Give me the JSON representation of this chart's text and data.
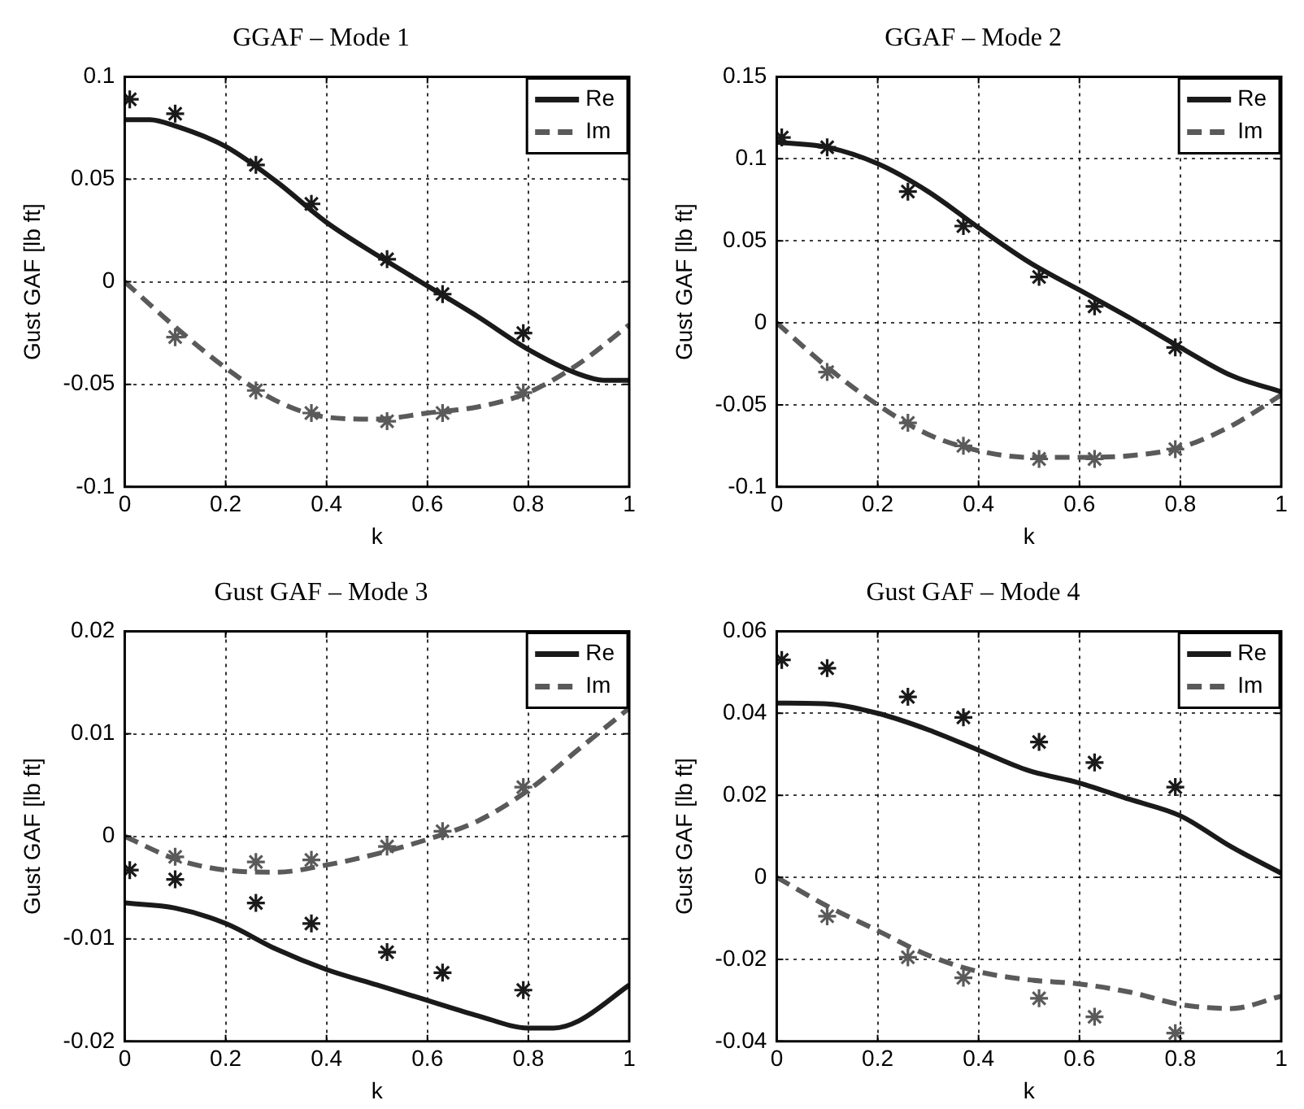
{
  "chart_data": [
    {
      "type": "line",
      "title": "GGAF – Mode 1",
      "xlabel": "k",
      "ylabel": "Gust GAF [lb ft]",
      "xlim": [
        0,
        1
      ],
      "xticks": [
        0,
        0.2,
        0.4,
        0.6,
        0.8,
        1
      ],
      "ylim": [
        -0.1,
        0.1
      ],
      "yticks": [
        -0.1,
        -0.05,
        0,
        0.05,
        0.1
      ],
      "grid": true,
      "legend": "top right",
      "series": [
        {
          "name": "Re",
          "color": "#1a1a1a",
          "line_style": "solid",
          "marker": "none",
          "x": [
            0,
            0.05,
            0.1,
            0.2,
            0.3,
            0.4,
            0.5,
            0.6,
            0.7,
            0.8,
            0.9,
            0.95,
            1
          ],
          "values": [
            0.079,
            0.079,
            0.076,
            0.066,
            0.049,
            0.029,
            0.013,
            -0.002,
            -0.017,
            -0.033,
            -0.045,
            -0.048,
            -0.048
          ]
        },
        {
          "name": "Im",
          "color": "#5a5a5a",
          "line_style": "dashed",
          "marker": "none",
          "x": [
            0,
            0.1,
            0.2,
            0.3,
            0.4,
            0.5,
            0.6,
            0.7,
            0.8,
            0.9,
            1
          ],
          "values": [
            0,
            -0.022,
            -0.042,
            -0.058,
            -0.066,
            -0.067,
            -0.064,
            -0.061,
            -0.054,
            -0.04,
            -0.021
          ]
        },
        {
          "type": "scatter",
          "color": "#1a1a1a",
          "marker": "cross",
          "x": [
            0.01,
            0.1,
            0.26,
            0.37,
            0.52,
            0.63,
            0.79
          ],
          "values": [
            0.089,
            0.082,
            0.057,
            0.038,
            0.011,
            -0.006,
            -0.025
          ]
        },
        {
          "type": "scatter",
          "color": "#5a5a5a",
          "marker": "cross",
          "x": [
            0.1,
            0.26,
            0.37,
            0.52,
            0.63,
            0.79
          ],
          "values": [
            -0.027,
            -0.053,
            -0.064,
            -0.068,
            -0.064,
            -0.054
          ]
        }
      ]
    },
    {
      "type": "line",
      "title": "GGAF – Mode 2",
      "xlabel": "k",
      "ylabel": "Gust GAF [lb ft]",
      "xlim": [
        0,
        1
      ],
      "xticks": [
        0,
        0.2,
        0.4,
        0.6,
        0.8,
        1
      ],
      "ylim": [
        -0.1,
        0.15
      ],
      "yticks": [
        -0.1,
        -0.05,
        0,
        0.05,
        0.1,
        0.15
      ],
      "grid": true,
      "legend": "top right",
      "series": [
        {
          "name": "Re",
          "color": "#1a1a1a",
          "line_style": "solid",
          "marker": "none",
          "x": [
            0,
            0.1,
            0.2,
            0.3,
            0.4,
            0.5,
            0.6,
            0.7,
            0.8,
            0.9,
            1
          ],
          "values": [
            0.11,
            0.107,
            0.097,
            0.08,
            0.058,
            0.037,
            0.02,
            0.003,
            -0.015,
            -0.032,
            -0.042
          ]
        },
        {
          "name": "Im",
          "color": "#5a5a5a",
          "line_style": "dashed",
          "marker": "none",
          "x": [
            0,
            0.1,
            0.2,
            0.3,
            0.4,
            0.5,
            0.6,
            0.7,
            0.8,
            0.9,
            1
          ],
          "values": [
            0,
            -0.027,
            -0.05,
            -0.068,
            -0.078,
            -0.082,
            -0.082,
            -0.081,
            -0.076,
            -0.063,
            -0.044
          ]
        },
        {
          "type": "scatter",
          "color": "#1a1a1a",
          "marker": "cross",
          "x": [
            0.01,
            0.1,
            0.26,
            0.37,
            0.52,
            0.63,
            0.79
          ],
          "values": [
            0.113,
            0.107,
            0.08,
            0.059,
            0.028,
            0.01,
            -0.015
          ]
        },
        {
          "type": "scatter",
          "color": "#5a5a5a",
          "marker": "cross",
          "x": [
            0.1,
            0.26,
            0.37,
            0.52,
            0.63,
            0.79
          ],
          "values": [
            -0.03,
            -0.061,
            -0.075,
            -0.083,
            -0.083,
            -0.077
          ]
        }
      ]
    },
    {
      "type": "line",
      "title": "Gust GAF – Mode 3",
      "xlabel": "k",
      "ylabel": "Gust GAF [lb ft]",
      "xlim": [
        0,
        1
      ],
      "xticks": [
        0,
        0.2,
        0.4,
        0.6,
        0.8,
        1
      ],
      "ylim": [
        -0.02,
        0.02
      ],
      "yticks": [
        -0.02,
        -0.01,
        0,
        0.01,
        0.02
      ],
      "grid": true,
      "legend": "top right",
      "series": [
        {
          "name": "Re",
          "color": "#1a1a1a",
          "line_style": "solid",
          "marker": "none",
          "x": [
            0,
            0.1,
            0.2,
            0.3,
            0.4,
            0.5,
            0.6,
            0.7,
            0.8,
            0.85,
            0.9,
            1
          ],
          "values": [
            -0.0065,
            -0.007,
            -0.0085,
            -0.011,
            -0.013,
            -0.0145,
            -0.016,
            -0.0175,
            -0.0187,
            -0.0187,
            -0.018,
            -0.0145
          ]
        },
        {
          "name": "Im",
          "color": "#5a5a5a",
          "line_style": "dashed",
          "marker": "none",
          "x": [
            0,
            0.1,
            0.2,
            0.3,
            0.4,
            0.5,
            0.6,
            0.7,
            0.8,
            0.9,
            1
          ],
          "values": [
            0,
            -0.0022,
            -0.0033,
            -0.0035,
            -0.0028,
            -0.0017,
            -0.0003,
            0.0015,
            0.0045,
            0.0085,
            0.0125
          ]
        },
        {
          "type": "scatter",
          "color": "#1a1a1a",
          "marker": "cross",
          "x": [
            0.01,
            0.1,
            0.26,
            0.37,
            0.52,
            0.63,
            0.79
          ],
          "values": [
            -0.0033,
            -0.0042,
            -0.0065,
            -0.0085,
            -0.0113,
            -0.0133,
            -0.015
          ]
        },
        {
          "type": "scatter",
          "color": "#5a5a5a",
          "marker": "cross",
          "x": [
            0.1,
            0.26,
            0.37,
            0.52,
            0.63,
            0.79
          ],
          "values": [
            -0.002,
            -0.0025,
            -0.0023,
            -0.001,
            0.0005,
            0.0048
          ]
        }
      ]
    },
    {
      "type": "line",
      "title": "Gust GAF – Mode 4",
      "xlabel": "k",
      "ylabel": "Gust GAF [lb ft]",
      "xlim": [
        0,
        1
      ],
      "xticks": [
        0,
        0.2,
        0.4,
        0.6,
        0.8,
        1
      ],
      "ylim": [
        -0.04,
        0.06
      ],
      "yticks": [
        -0.04,
        -0.02,
        0,
        0.02,
        0.04,
        0.06
      ],
      "grid": true,
      "legend": "top right",
      "series": [
        {
          "name": "Re",
          "color": "#1a1a1a",
          "line_style": "solid",
          "marker": "none",
          "x": [
            0,
            0.1,
            0.2,
            0.3,
            0.4,
            0.5,
            0.6,
            0.7,
            0.8,
            0.9,
            1
          ],
          "values": [
            0.0425,
            0.0423,
            0.04,
            0.036,
            0.031,
            0.026,
            0.023,
            0.019,
            0.015,
            0.0075,
            0.001
          ]
        },
        {
          "name": "Im",
          "color": "#5a5a5a",
          "line_style": "dashed",
          "marker": "none",
          "x": [
            0,
            0.1,
            0.2,
            0.3,
            0.4,
            0.5,
            0.6,
            0.7,
            0.8,
            0.9,
            1
          ],
          "values": [
            0,
            -0.007,
            -0.013,
            -0.019,
            -0.023,
            -0.025,
            -0.026,
            -0.028,
            -0.031,
            -0.032,
            -0.029
          ]
        },
        {
          "type": "scatter",
          "color": "#1a1a1a",
          "marker": "cross",
          "x": [
            0.01,
            0.1,
            0.26,
            0.37,
            0.52,
            0.63,
            0.79
          ],
          "values": [
            0.053,
            0.051,
            0.044,
            0.039,
            0.033,
            0.028,
            0.022
          ]
        },
        {
          "type": "scatter",
          "color": "#5a5a5a",
          "marker": "cross",
          "x": [
            0.1,
            0.26,
            0.37,
            0.52,
            0.63,
            0.79
          ],
          "values": [
            -0.0095,
            -0.0195,
            -0.0245,
            -0.0295,
            -0.034,
            -0.038
          ]
        }
      ]
    }
  ]
}
